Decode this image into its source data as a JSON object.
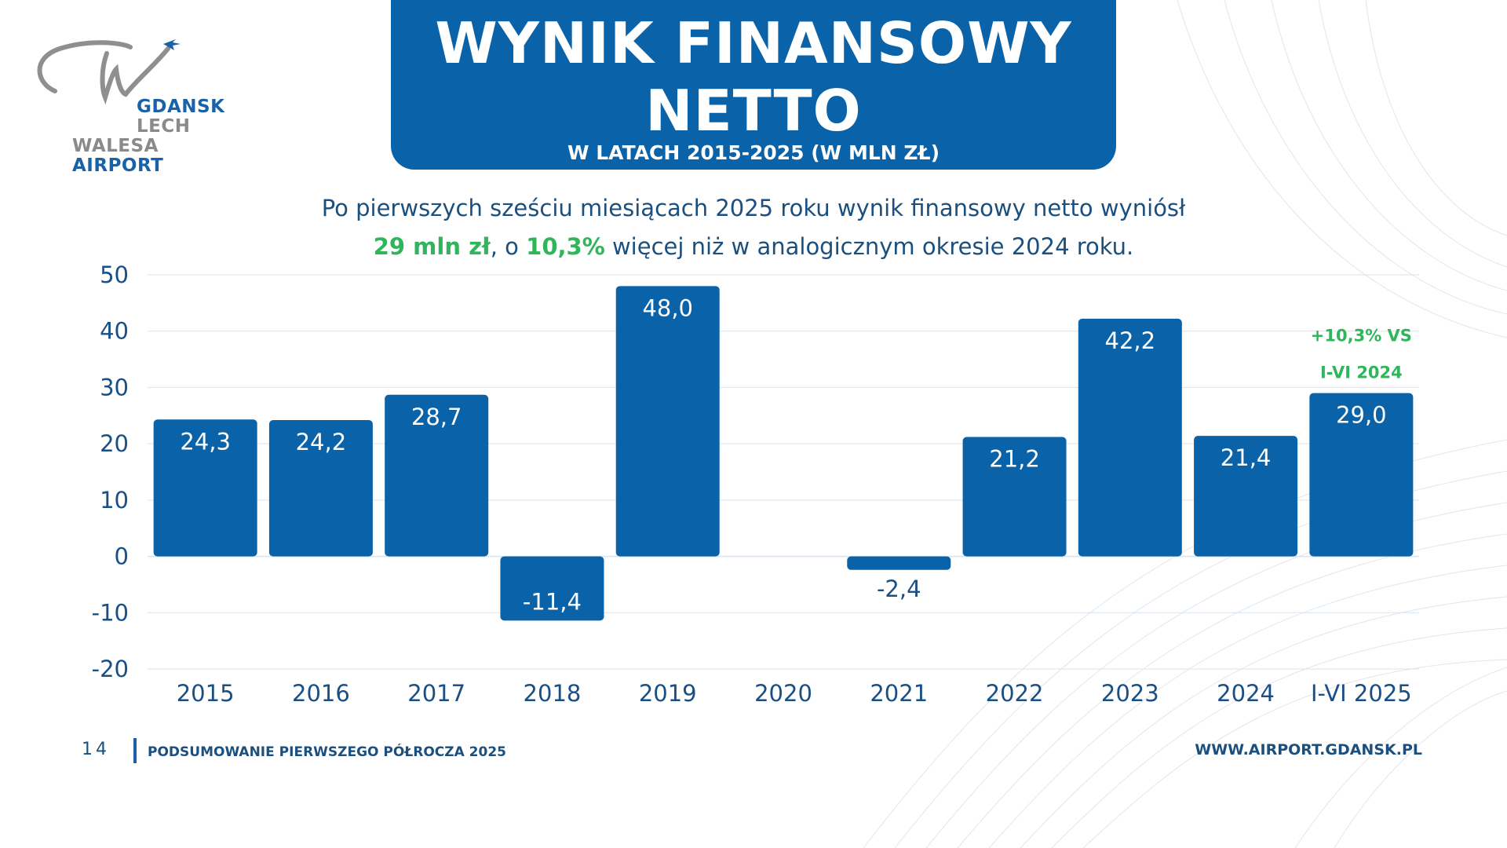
{
  "brand": {
    "line1_word1": "GDANSK",
    "line1_word2": "LECH",
    "line2_word1": "WALESA",
    "line2_word2": "AIRPORT"
  },
  "header": {
    "title_line1": "WYNIK FINANSOWY",
    "title_line2": "NETTO",
    "subtitle": "W LATACH 2015-2025 (W MLN ZŁ)"
  },
  "lead": {
    "line1": "Po pierwszych sześciu miesiącach 2025 roku wynik finansowy netto wyniósł",
    "line2_hl1": "29 mln zł",
    "line2_mid": ", o ",
    "line2_hl2": "10,3%",
    "line2_end": " więcej niż w analogicznym okresie 2024 roku."
  },
  "chart_data": {
    "type": "bar",
    "categories": [
      "2015",
      "2016",
      "2017",
      "2018",
      "2019",
      "2020",
      "2021",
      "2022",
      "2023",
      "2024",
      "I-VI 2025"
    ],
    "values": [
      24.3,
      24.2,
      28.7,
      -11.4,
      48.0,
      0,
      -2.4,
      21.2,
      42.2,
      21.4,
      29.0
    ],
    "value_labels": [
      "24,3",
      "24,2",
      "28,7",
      "-11,4",
      "48,0",
      "",
      "-2,4",
      "21,2",
      "42,2",
      "21,4",
      "29,0"
    ],
    "ylim": [
      -20,
      50
    ],
    "yticks": [
      50,
      40,
      30,
      20,
      10,
      0,
      -10,
      -20
    ],
    "grid": true,
    "annotation": {
      "category": "I-VI 2025",
      "line1": "+10,3% VS",
      "line2": "I-VI 2024"
    }
  },
  "footer": {
    "page_number": "14",
    "left_text": "PODSUMOWANIE PIERWSZEGO PÓŁROCZA 2025",
    "right_text": "WWW.AIRPORT.GDANSK.PL"
  },
  "colors": {
    "bar": "#0a62a8",
    "accent_green": "#2fb55a",
    "text_blue": "#1b4f7e",
    "grid": "#d9e3ee"
  }
}
